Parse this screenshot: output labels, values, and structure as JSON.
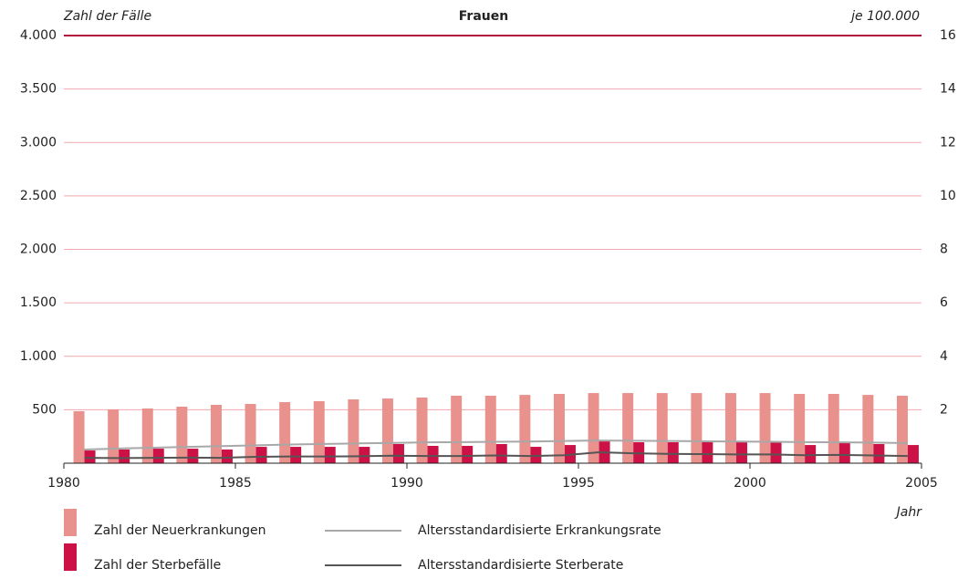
{
  "chart_data": {
    "type": "bar",
    "title": "Frauen",
    "y_label": "Zahl der Fälle",
    "y2_label": "je 100.000",
    "x_label": "Jahr",
    "x": [
      1980,
      1981,
      1982,
      1983,
      1984,
      1985,
      1986,
      1987,
      1988,
      1989,
      1990,
      1991,
      1992,
      1993,
      1994,
      1995,
      1996,
      1997,
      1998,
      1999,
      2000,
      2001,
      2002,
      2003,
      2004
    ],
    "xlim": [
      1980,
      2005
    ],
    "xticks": [
      1980,
      1985,
      1990,
      1995,
      2000,
      2005
    ],
    "ylim": [
      0,
      4000
    ],
    "yticks": [
      500,
      {
        "value": 1000,
        "label": "1.000"
      },
      {
        "value": 1500,
        "label": "1.500"
      },
      {
        "value": 2000,
        "label": "2.000"
      },
      {
        "value": 2500,
        "label": "2.500"
      },
      {
        "value": 3000,
        "label": "3.000"
      },
      {
        "value": 3500,
        "label": "3.500"
      },
      {
        "value": 4000,
        "label": "4.000"
      }
    ],
    "y2lim": [
      0,
      16
    ],
    "y2ticks": [
      2,
      4,
      6,
      8,
      10,
      12,
      14,
      16
    ],
    "grid": true,
    "series": [
      {
        "name": "Zahl der Neuerkrankungen",
        "type": "bar",
        "color": "#e8918d",
        "values": [
          486,
          503,
          512,
          529,
          546,
          554,
          571,
          580,
          597,
          605,
          614,
          631,
          631,
          639,
          648,
          656,
          656,
          656,
          656,
          656,
          656,
          648,
          648,
          639,
          631
        ]
      },
      {
        "name": "Zahl der Sterbefälle",
        "type": "bar",
        "color": "#cc1146",
        "values": [
          119,
          128,
          136,
          136,
          128,
          153,
          153,
          153,
          153,
          179,
          162,
          162,
          179,
          153,
          170,
          213,
          196,
          196,
          196,
          196,
          196,
          170,
          188,
          179,
          170
        ]
      },
      {
        "name": "Altersstandardisierte Erkrankungsrate",
        "type": "line",
        "axis": "y2",
        "color": "#a8a8a8",
        "values": [
          0.51,
          0.55,
          0.58,
          0.61,
          0.64,
          0.67,
          0.7,
          0.72,
          0.74,
          0.76,
          0.78,
          0.79,
          0.8,
          0.81,
          0.83,
          0.85,
          0.84,
          0.83,
          0.82,
          0.81,
          0.8,
          0.79,
          0.78,
          0.77,
          0.75
        ]
      },
      {
        "name": "Altersstandardisierte Sterberate",
        "type": "line",
        "axis": "y2",
        "color": "#555555",
        "values": [
          0.2,
          0.19,
          0.2,
          0.21,
          0.2,
          0.24,
          0.25,
          0.25,
          0.26,
          0.28,
          0.27,
          0.27,
          0.29,
          0.27,
          0.3,
          0.41,
          0.37,
          0.35,
          0.34,
          0.33,
          0.33,
          0.3,
          0.31,
          0.29,
          0.27
        ]
      }
    ]
  }
}
